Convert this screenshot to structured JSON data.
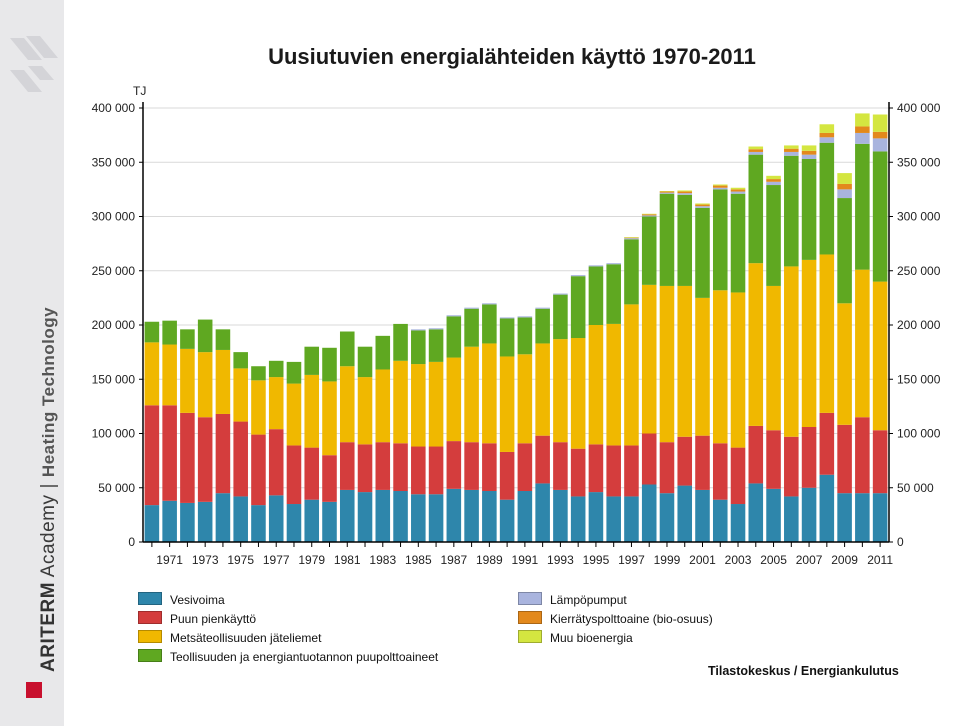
{
  "sidebar": {
    "brand_name": "ARITERM",
    "brand_academy": "Academy",
    "separator": "|",
    "brand_subtitle": "Heating Technology"
  },
  "chart_data": {
    "type": "bar",
    "stacked": true,
    "title": "Uusiutuvien energialähteiden käyttö 1970-2011",
    "ylabel": "TJ",
    "xlabel": "",
    "ylim": [
      0,
      400000
    ],
    "yticks": [
      "0",
      "50 000",
      "100 000",
      "150 000",
      "200 000",
      "250 000",
      "300 000",
      "350 000",
      "400 000"
    ],
    "ytick_values": [
      0,
      50000,
      100000,
      150000,
      200000,
      250000,
      300000,
      350000,
      400000
    ],
    "grid": true,
    "legend_position": "bottom",
    "source": "Tilastokeskus / Energiankulutus",
    "categories": [
      1970,
      1971,
      1972,
      1973,
      1974,
      1975,
      1976,
      1977,
      1978,
      1979,
      1980,
      1981,
      1982,
      1983,
      1984,
      1985,
      1986,
      1987,
      1988,
      1989,
      1990,
      1991,
      1992,
      1993,
      1994,
      1995,
      1996,
      1997,
      1998,
      1999,
      2000,
      2001,
      2002,
      2003,
      2004,
      2005,
      2006,
      2007,
      2008,
      2009,
      2010,
      2011
    ],
    "xtick_labels": [
      "1971",
      "1973",
      "1975",
      "1977",
      "1979",
      "1981",
      "1983",
      "1985",
      "1987",
      "1989",
      "1991",
      "1993",
      "1995",
      "1997",
      "1999",
      "2001",
      "2003",
      "2005",
      "2007",
      "2009",
      "2011"
    ],
    "series": [
      {
        "name": "Vesivoima",
        "color": "#2e86ab",
        "values": [
          34000,
          38000,
          36000,
          37000,
          45000,
          42000,
          34000,
          43000,
          35000,
          39000,
          37000,
          48000,
          46000,
          48000,
          47000,
          44000,
          44000,
          49000,
          48000,
          47000,
          39000,
          47000,
          54000,
          48000,
          42000,
          46000,
          42000,
          42000,
          53000,
          45000,
          52000,
          48000,
          39000,
          35000,
          54000,
          49000,
          42000,
          50000,
          62000,
          45000,
          45000,
          45000
        ]
      },
      {
        "name": "Puun pienkäyttö",
        "color": "#d43d3d",
        "values": [
          92000,
          88000,
          83000,
          78000,
          73000,
          69000,
          65000,
          61000,
          54000,
          48000,
          43000,
          44000,
          44000,
          44000,
          44000,
          44000,
          44000,
          44000,
          44000,
          44000,
          44000,
          44000,
          44000,
          44000,
          44000,
          44000,
          47000,
          47000,
          47000,
          47000,
          45000,
          50000,
          52000,
          52000,
          53000,
          54000,
          55000,
          56000,
          57000,
          63000,
          70000,
          58000
        ]
      },
      {
        "name": "Metsäteollisuuden jäteliemet",
        "color": "#f0b800",
        "values": [
          58000,
          56000,
          59000,
          60000,
          59000,
          49000,
          50000,
          48000,
          57000,
          67000,
          68000,
          70000,
          62000,
          67000,
          76000,
          76000,
          78000,
          77000,
          88000,
          92000,
          88000,
          82000,
          85000,
          95000,
          102000,
          110000,
          112000,
          130000,
          137000,
          144000,
          139000,
          127000,
          141000,
          143000,
          150000,
          133000,
          157000,
          154000,
          146000,
          112000,
          136000,
          137000
        ]
      },
      {
        "name": "Teollisuuden ja energiantuotannon puupolttoaineet",
        "color": "#5fa821",
        "values": [
          19000,
          22000,
          18000,
          30000,
          19000,
          15000,
          13000,
          15000,
          20000,
          26000,
          31000,
          32000,
          28000,
          31000,
          34000,
          31000,
          30000,
          38000,
          35000,
          36000,
          35000,
          34000,
          32000,
          41000,
          57000,
          54000,
          55000,
          60000,
          63000,
          85000,
          84000,
          83000,
          93000,
          91000,
          100000,
          93000,
          102000,
          93000,
          103000,
          97000,
          116000,
          120000
        ]
      },
      {
        "name": "Lämpöpumput",
        "color": "#a9b4de",
        "values": [
          0,
          0,
          0,
          0,
          0,
          0,
          0,
          0,
          0,
          0,
          0,
          0,
          0,
          0,
          0,
          1000,
          1000,
          1000,
          1000,
          1000,
          1000,
          1000,
          1000,
          1000,
          1000,
          1000,
          1000,
          1000,
          1000,
          1000,
          1500,
          1500,
          1500,
          2000,
          2500,
          3000,
          3500,
          4000,
          5000,
          8000,
          10000,
          12000
        ]
      },
      {
        "name": "Kierrätyspolttoaine (bio-osuus)",
        "color": "#e3891c",
        "values": [
          0,
          0,
          0,
          0,
          0,
          0,
          0,
          0,
          0,
          0,
          0,
          0,
          0,
          0,
          0,
          0,
          0,
          0,
          0,
          0,
          0,
          0,
          0,
          0,
          0,
          0,
          0,
          500,
          1000,
          1000,
          1500,
          1500,
          2000,
          2000,
          2500,
          2500,
          3000,
          3500,
          4000,
          5000,
          6000,
          6000
        ]
      },
      {
        "name": "Muu bioenergia",
        "color": "#d4e640",
        "values": [
          0,
          0,
          0,
          0,
          0,
          0,
          0,
          0,
          0,
          0,
          0,
          0,
          0,
          0,
          0,
          0,
          0,
          0,
          0,
          0,
          0,
          0,
          0,
          0,
          0,
          0,
          0,
          500,
          500,
          500,
          1000,
          1000,
          1000,
          1500,
          2500,
          3000,
          3000,
          5000,
          8000,
          10000,
          12000,
          16000
        ]
      }
    ]
  }
}
